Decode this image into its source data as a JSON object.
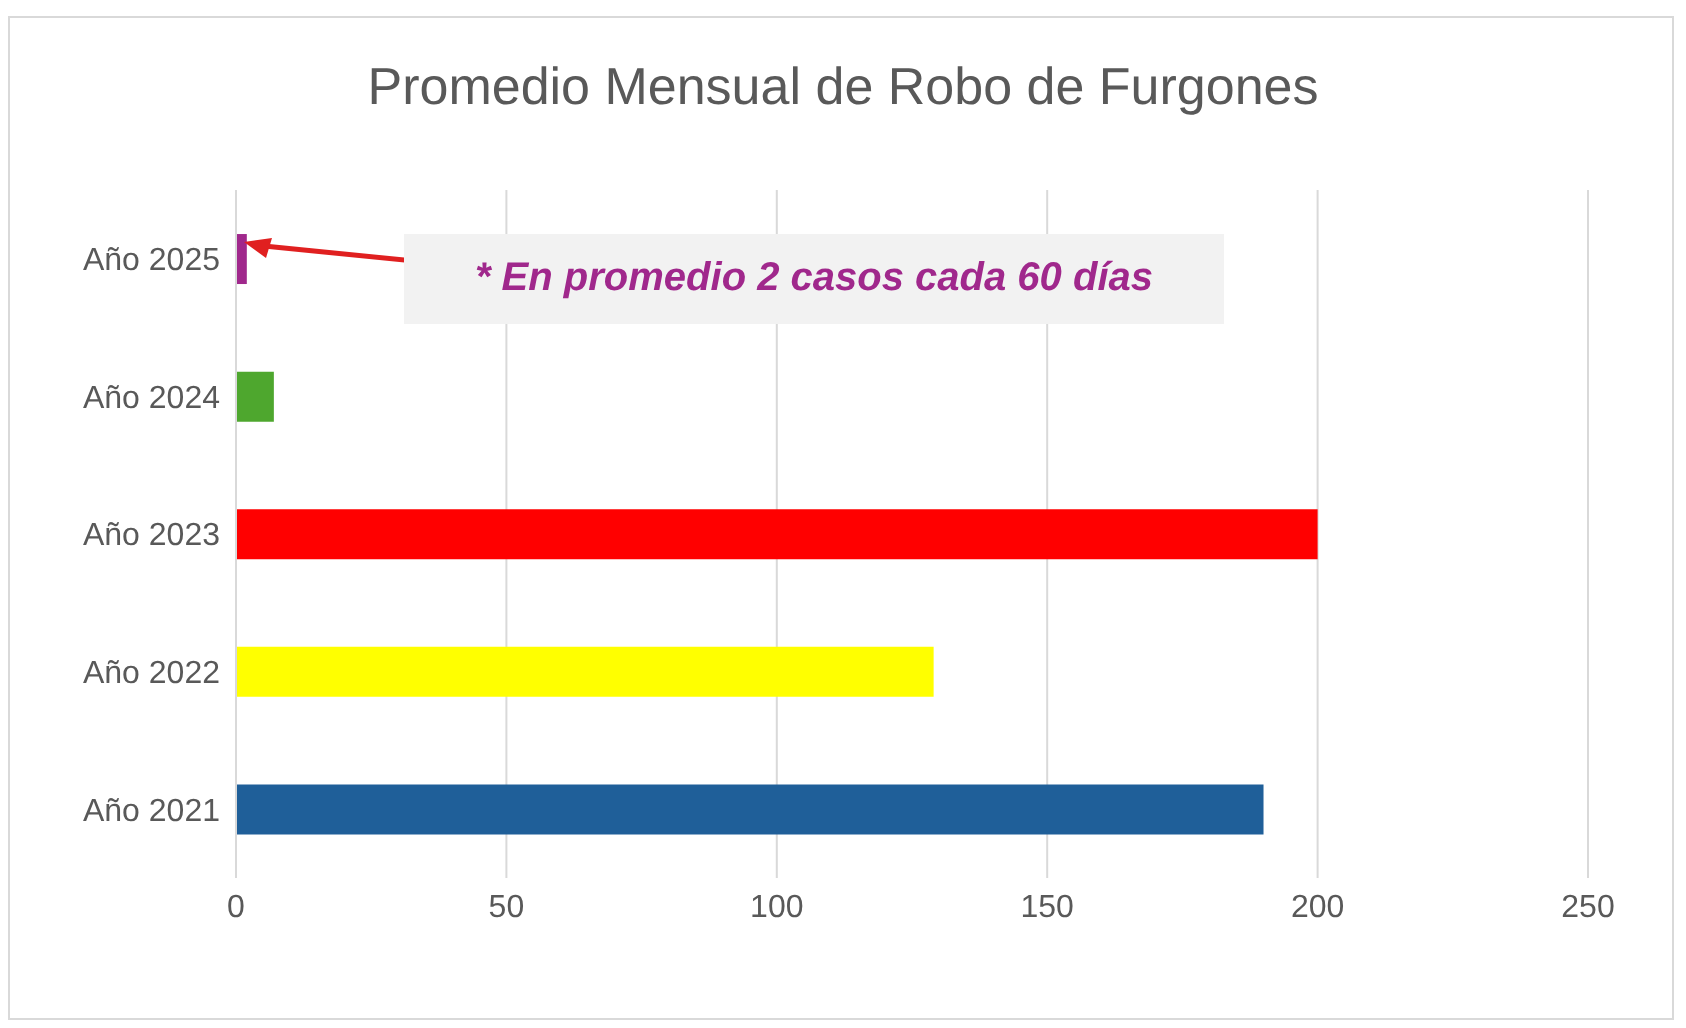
{
  "chart_data": {
    "type": "bar",
    "orientation": "horizontal",
    "title": "Promedio Mensual de Robo de Furgones",
    "categories": [
      "Año 2025",
      "Año 2024",
      "Año 2023",
      "Año 2022",
      "Año 2021"
    ],
    "values": [
      2,
      7,
      200,
      129,
      190
    ],
    "colors": [
      "#a0288c",
      "#4ea72e",
      "#ff0000",
      "#ffff00",
      "#1f5f99"
    ],
    "xlim": [
      0,
      250
    ],
    "xticks": [
      0,
      50,
      100,
      150,
      200,
      250
    ],
    "grid": "x",
    "annotations": [
      "* En promedio 2 casos cada 60 días"
    ]
  }
}
